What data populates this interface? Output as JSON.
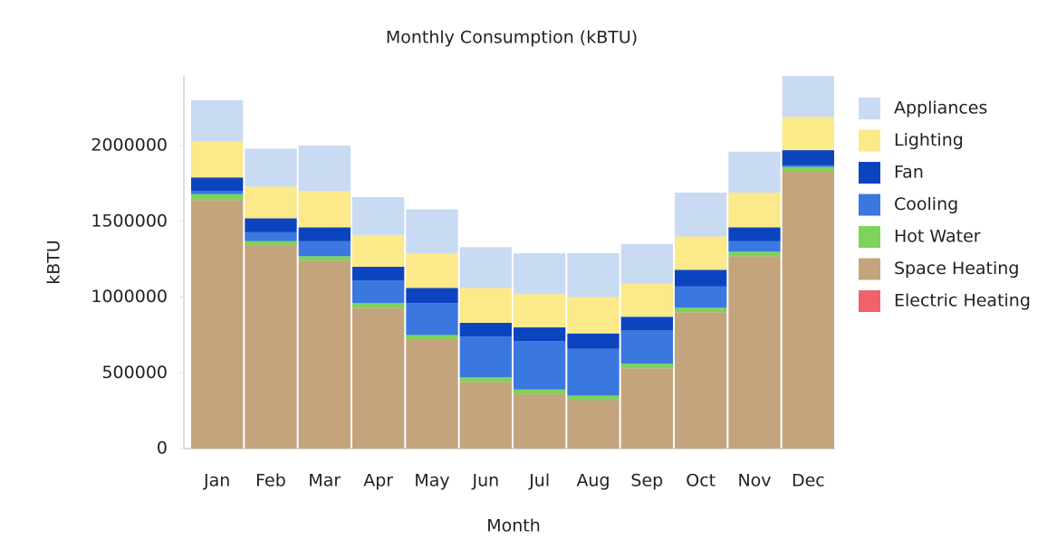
{
  "chart_data": {
    "type": "stacked_bar",
    "title": "Monthly Consumption (kBTU)",
    "x_label": "Month",
    "y_label": "kBTU",
    "categories": [
      "Jan",
      "Feb",
      "Mar",
      "Apr",
      "May",
      "Jun",
      "Jul",
      "Aug",
      "Sep",
      "Oct",
      "Nov",
      "Dec"
    ],
    "series": [
      {
        "name": "Electric Heating",
        "color": "#f0626a",
        "values": [
          0,
          0,
          0,
          0,
          0,
          0,
          0,
          0,
          0,
          0,
          0,
          0
        ]
      },
      {
        "name": "Space Heating",
        "color": "#c4a47c",
        "values": [
          1640000,
          1340000,
          1240000,
          930000,
          720000,
          440000,
          360000,
          320000,
          530000,
          900000,
          1270000,
          1830000
        ]
      },
      {
        "name": "Hot Water",
        "color": "#7ed35a",
        "values": [
          40000,
          30000,
          30000,
          30000,
          30000,
          30000,
          30000,
          30000,
          30000,
          30000,
          30000,
          30000
        ]
      },
      {
        "name": "Cooling",
        "color": "#3a78e0",
        "values": [
          20000,
          60000,
          100000,
          150000,
          210000,
          270000,
          320000,
          310000,
          220000,
          140000,
          70000,
          10000
        ]
      },
      {
        "name": "Fan",
        "color": "#0c44c0",
        "values": [
          90000,
          90000,
          90000,
          90000,
          100000,
          90000,
          90000,
          100000,
          90000,
          110000,
          90000,
          100000
        ]
      },
      {
        "name": "Lighting",
        "color": "#fbe98a",
        "values": [
          240000,
          210000,
          240000,
          210000,
          230000,
          230000,
          220000,
          240000,
          220000,
          220000,
          230000,
          220000
        ]
      },
      {
        "name": "Appliances",
        "color": "#c9daf3",
        "values": [
          270000,
          250000,
          300000,
          250000,
          290000,
          270000,
          270000,
          290000,
          260000,
          290000,
          270000,
          270000
        ]
      }
    ],
    "ylim": [
      0,
      2460000
    ],
    "yticks": [
      0,
      500000,
      1000000,
      1500000,
      2000000
    ],
    "grid": false,
    "legend": "right"
  }
}
